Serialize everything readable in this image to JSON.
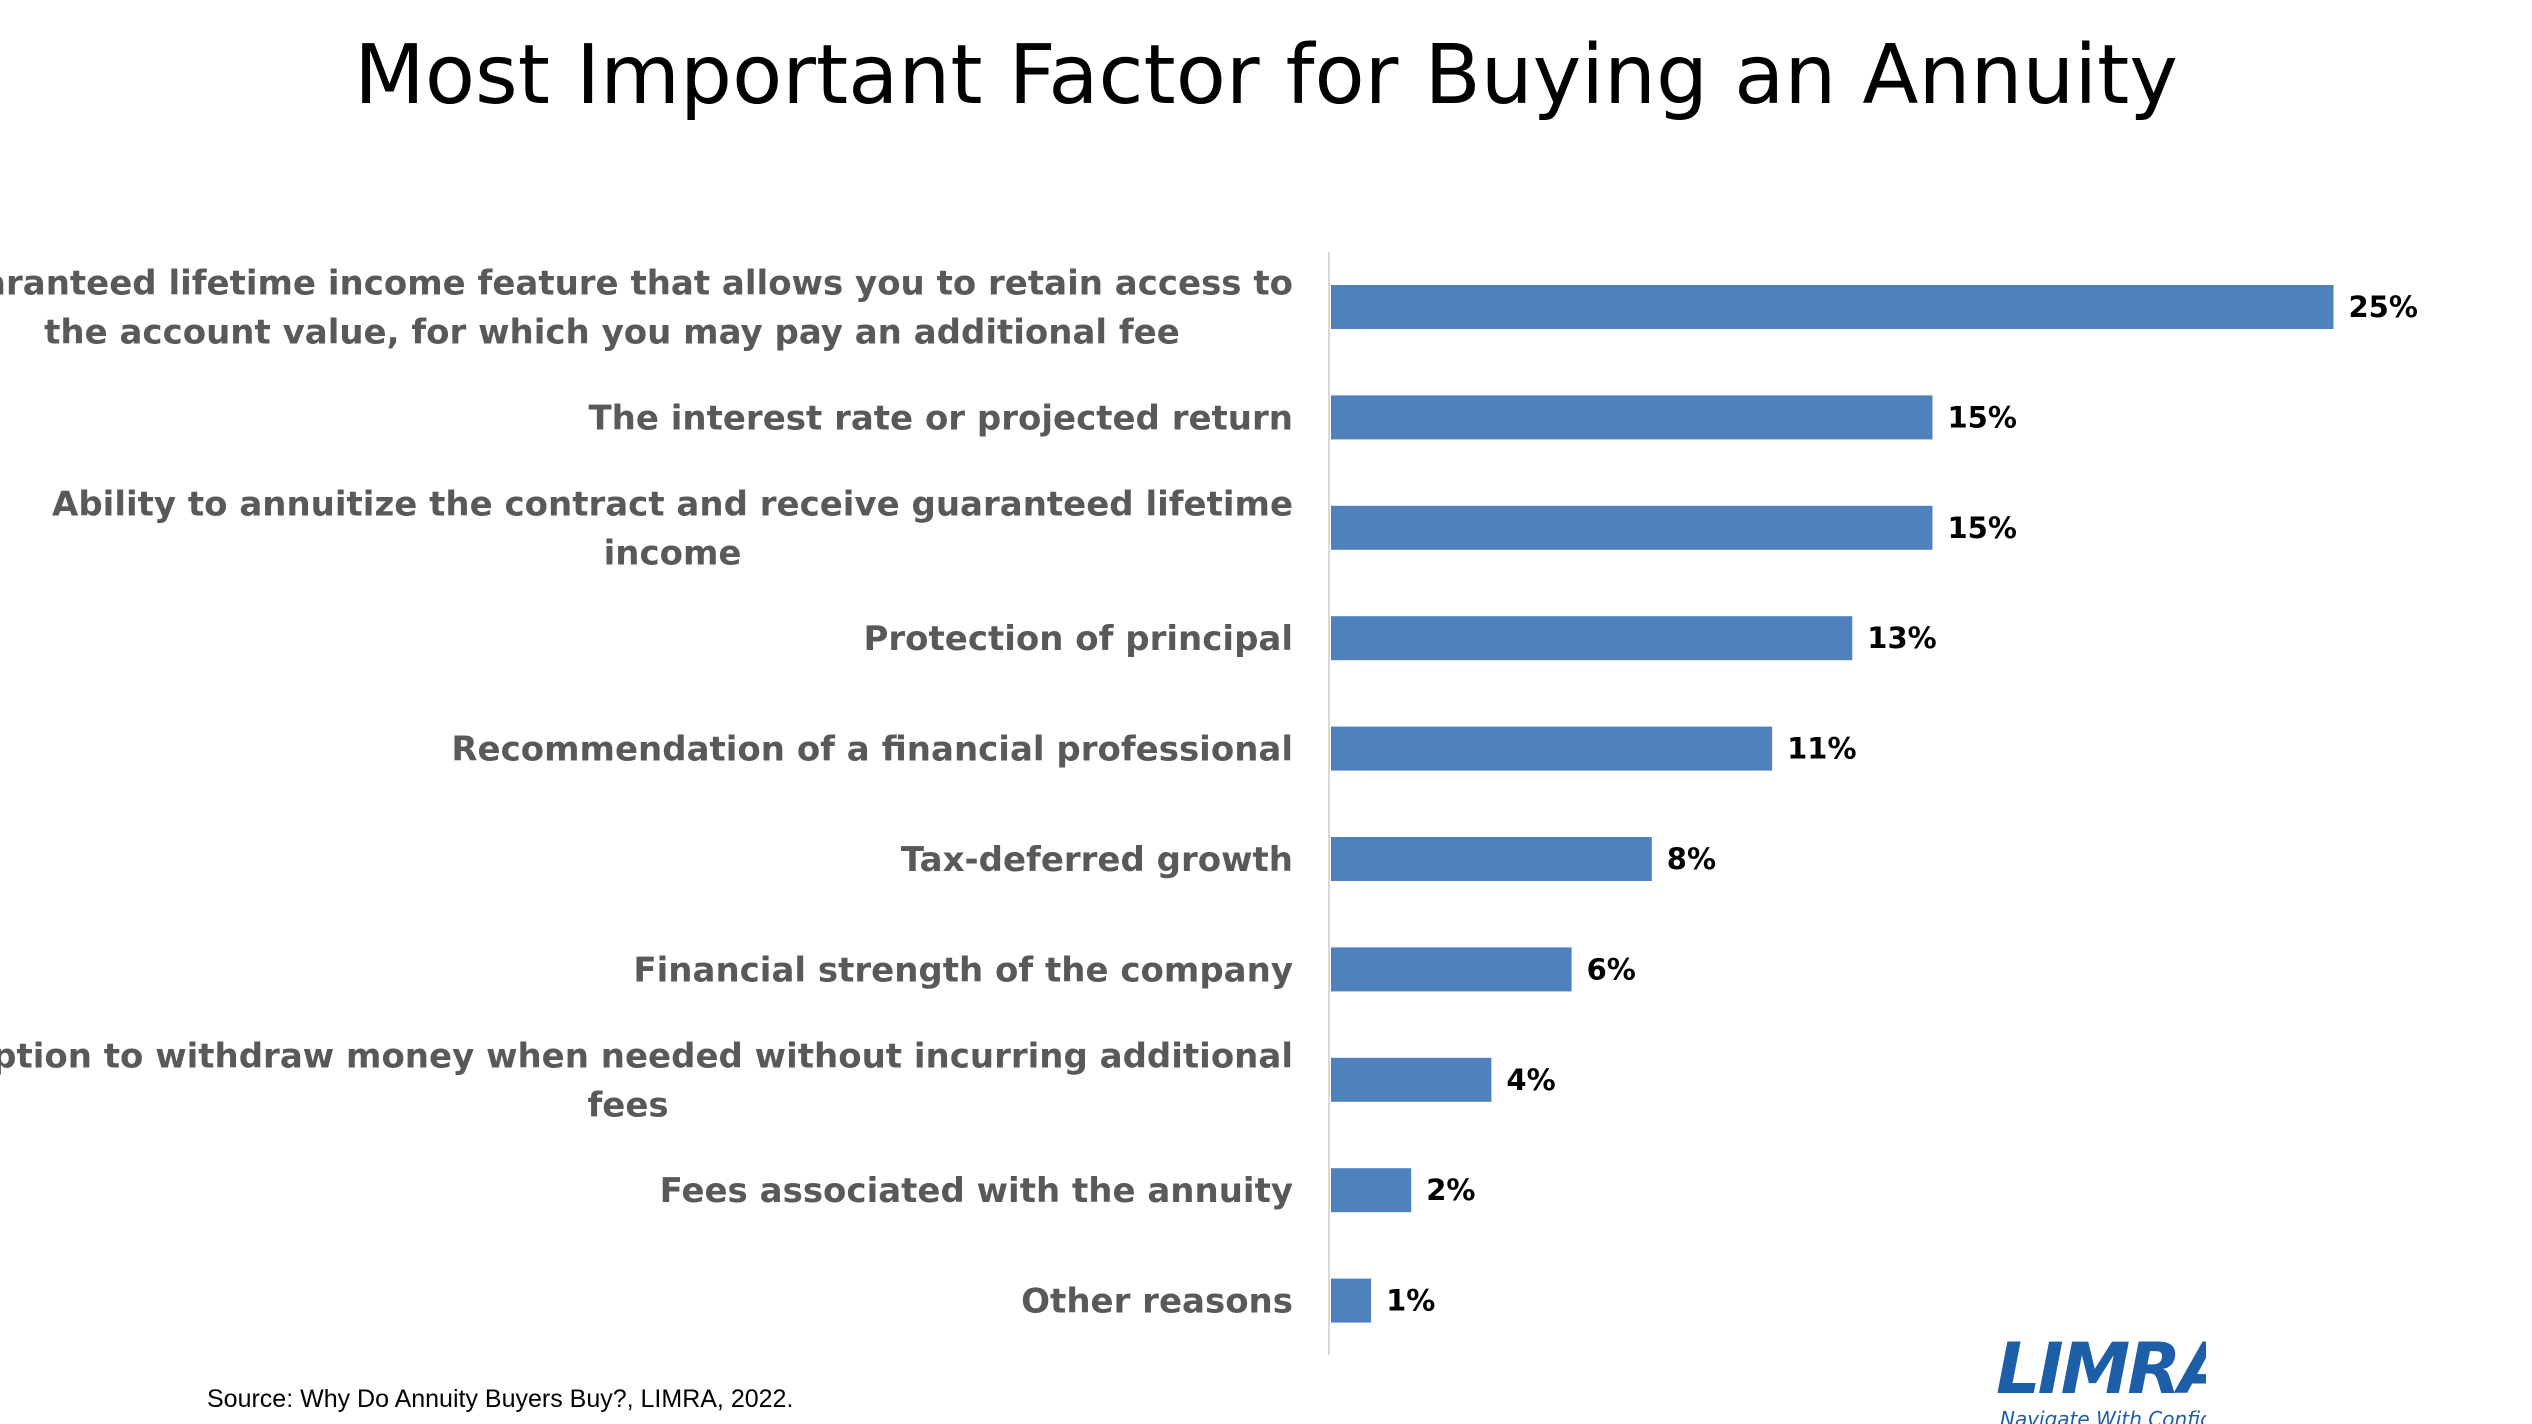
{
  "chart_data": {
    "type": "bar",
    "orientation": "horizontal",
    "title": "Most Important Factor for Buying an Annuity",
    "categories": [
      "Guaranteed lifetime income feature that allows you to retain access to the account value, for which you may pay an additional fee",
      "The interest rate or projected return",
      "Ability to annuitize the contract and receive guaranteed lifetime income",
      "Protection of principal",
      "Recommendation of a financial professional",
      "Tax-deferred growth",
      "Financial strength of the company",
      "Option to withdraw money when needed without incurring additional fees",
      "Fees associated with the annuity",
      "Other reasons"
    ],
    "label_lines": [
      [
        "Guaranteed lifetime income feature that allows you to retain access to",
        "the account value, for which you may pay an additional fee"
      ],
      [
        "The interest rate or projected return"
      ],
      [
        "Ability to annuitize the contract and receive guaranteed lifetime",
        "income"
      ],
      [
        "Protection of principal"
      ],
      [
        "Recommendation of a financial professional"
      ],
      [
        "Tax-deferred growth"
      ],
      [
        "Financial strength of the company"
      ],
      [
        "Option to withdraw money when needed without incurring additional",
        "fees"
      ],
      [
        "Fees associated with the annuity"
      ],
      [
        "Other reasons"
      ]
    ],
    "values": [
      25,
      15,
      15,
      13,
      11,
      8,
      6,
      4,
      2,
      1
    ],
    "value_labels": [
      "25%",
      "15%",
      "15%",
      "13%",
      "11%",
      "8%",
      "6%",
      "4%",
      "2%",
      "1%"
    ],
    "unit": "%",
    "bar_color": "#4f81bd",
    "grid": false,
    "legend": "none"
  },
  "footer": {
    "source": "Source: Why Do Annuity Buyers Buy?, LIMRA, 2022."
  },
  "logo": {
    "wordmark": "LIMRA",
    "tagline": "Navigate With Confidence",
    "color": "#1d5ea8"
  }
}
